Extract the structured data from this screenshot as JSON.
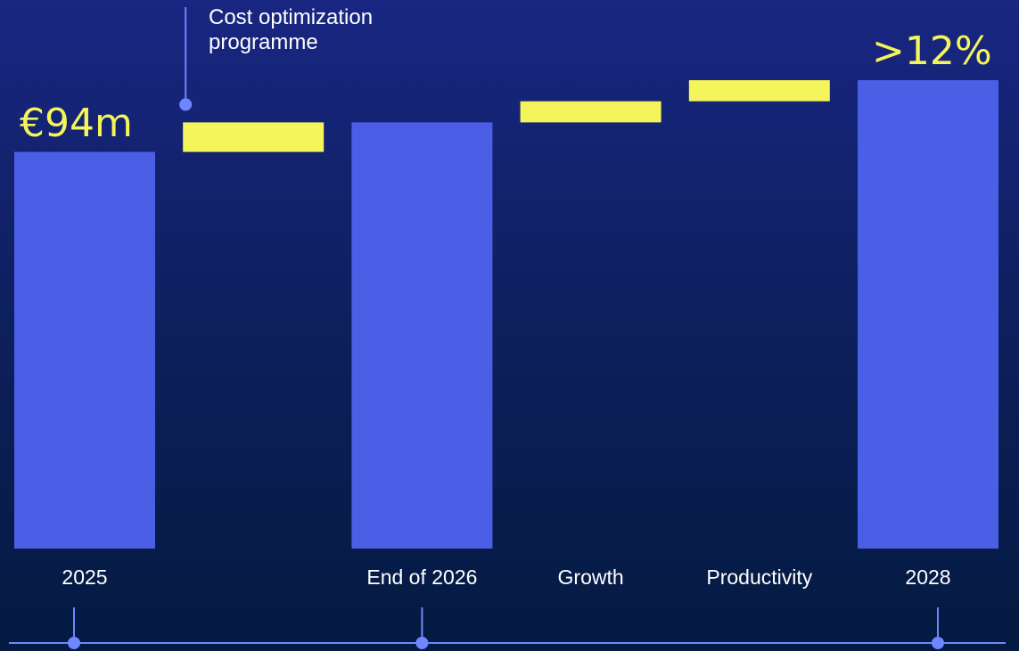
{
  "chart_data": {
    "type": "bar",
    "subtype": "waterfall",
    "categories": [
      "2025",
      "",
      "End of 2026",
      "Growth",
      "Productivity",
      "2028"
    ],
    "steps": [
      {
        "category": "2025",
        "kind": "total",
        "from": 0,
        "to": 94,
        "value_label": "€94m"
      },
      {
        "category": "",
        "kind": "increment",
        "from": 94,
        "to": 101,
        "annotation": "Cost optimization programme"
      },
      {
        "category": "End of 2026",
        "kind": "total",
        "from": 0,
        "to": 101
      },
      {
        "category": "Growth",
        "kind": "increment",
        "from": 101,
        "to": 106
      },
      {
        "category": "Productivity",
        "kind": "increment",
        "from": 106,
        "to": 111
      },
      {
        "category": "2028",
        "kind": "total",
        "from": 0,
        "to": 111,
        "value_label": ">12%"
      }
    ],
    "ylim": [
      0,
      130
    ],
    "grid": false,
    "legend": "none",
    "timeline_markers": [
      "2025",
      "End of 2026",
      "2028"
    ],
    "colors": {
      "total_bar": "#4b5fe6",
      "increment_bar": "#f4f55a",
      "value_label": "#f4f55a",
      "timeline": "#6f86ff",
      "text": "#ffffff"
    }
  }
}
